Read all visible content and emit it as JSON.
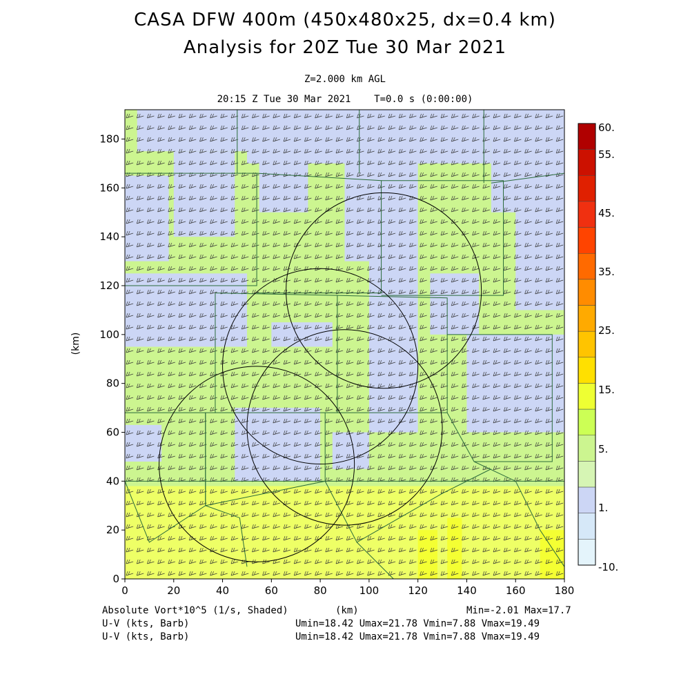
{
  "header": {
    "title_line1": "CASA DFW 400m (450x480x25, dx=0.4 km)",
    "title_line2": "Analysis for 20Z Tue 30 Mar 2021",
    "level": "Z=2.000 km AGL",
    "time": "20:15 Z Tue 30 Mar 2021    T=0.0 s (0:00:00)"
  },
  "footer": {
    "field_label": "Absolute Vort*10^5 (1/s, Shaded)",
    "xaxis_unit": "(km)",
    "minmax": "Min=-2.01 Max=17.7",
    "barb_label_1": "U-V (kts, Barb)",
    "barb_label_2": "U-V (kts, Barb)",
    "barb_stats_1": "Umin=18.42 Umax=21.78 Vmin=7.88 Vmax=19.49",
    "barb_stats_2": "Umin=18.42 Umax=21.78 Vmin=7.88 Vmax=19.49"
  },
  "chart_data": {
    "type": "heatmap",
    "field": "Absolute Vort*10^5 (1/s, Shaded)",
    "xlabel": "(km)",
    "ylabel": "(km)",
    "xlim": [
      0,
      180
    ],
    "ylim": [
      0,
      192
    ],
    "x_ticks": [
      "0",
      "20",
      "40",
      "60",
      "80",
      "100",
      "120",
      "140",
      "160",
      "180"
    ],
    "y_ticks": [
      "0",
      "20",
      "40",
      "60",
      "80",
      "100",
      "120",
      "140",
      "160",
      "180"
    ],
    "colorbar": {
      "labels": [
        "60.",
        "55.",
        "45.",
        "35.",
        "25.",
        "15.",
        "5.",
        "1.",
        "-10."
      ],
      "colors": [
        "#b00000",
        "#cc1100",
        "#e02000",
        "#f03010",
        "#ff4400",
        "#ff6a00",
        "#ff8c00",
        "#ffaa00",
        "#ffc400",
        "#ffe000",
        "#eeff33",
        "#ccff55",
        "#ccf590",
        "#d6f5b4",
        "#ccd6f5",
        "#d6e8f8",
        "#e4f4fb"
      ]
    },
    "vorticity_range": {
      "min": -2.01,
      "max": 17.7
    },
    "wind": {
      "umin": 18.42,
      "umax": 21.78,
      "vmin": 7.88,
      "vmax": 19.49,
      "units": "kts"
    },
    "radar_rings_center_km": [
      [
        54,
        47
      ],
      [
        80,
        87
      ],
      [
        90,
        62
      ],
      [
        106,
        118
      ]
    ],
    "radar_ring_radius_km": 40
  }
}
